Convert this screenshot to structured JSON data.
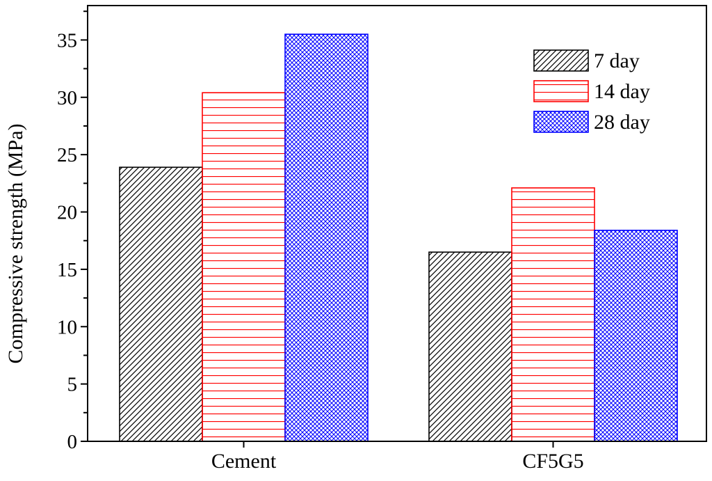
{
  "chart_data": {
    "type": "bar",
    "categories": [
      "Cement",
      "CF5G5"
    ],
    "series": [
      {
        "name": "7 day",
        "values": [
          23.9,
          16.5
        ],
        "color": "#000000",
        "pattern": "diagonal-hatch"
      },
      {
        "name": "14 day",
        "values": [
          30.4,
          22.1
        ],
        "color": "#ff0000",
        "pattern": "horizontal-lines"
      },
      {
        "name": "28 day",
        "values": [
          35.5,
          18.4
        ],
        "color": "#0000ff",
        "pattern": "crosshatch"
      }
    ],
    "title": "",
    "xlabel": "",
    "ylabel": "Compressive strength (MPa)",
    "ylim": [
      0,
      38
    ],
    "yticks": [
      0,
      5,
      10,
      15,
      20,
      25,
      30,
      35
    ],
    "grid": false,
    "legend_position": "top-right"
  }
}
